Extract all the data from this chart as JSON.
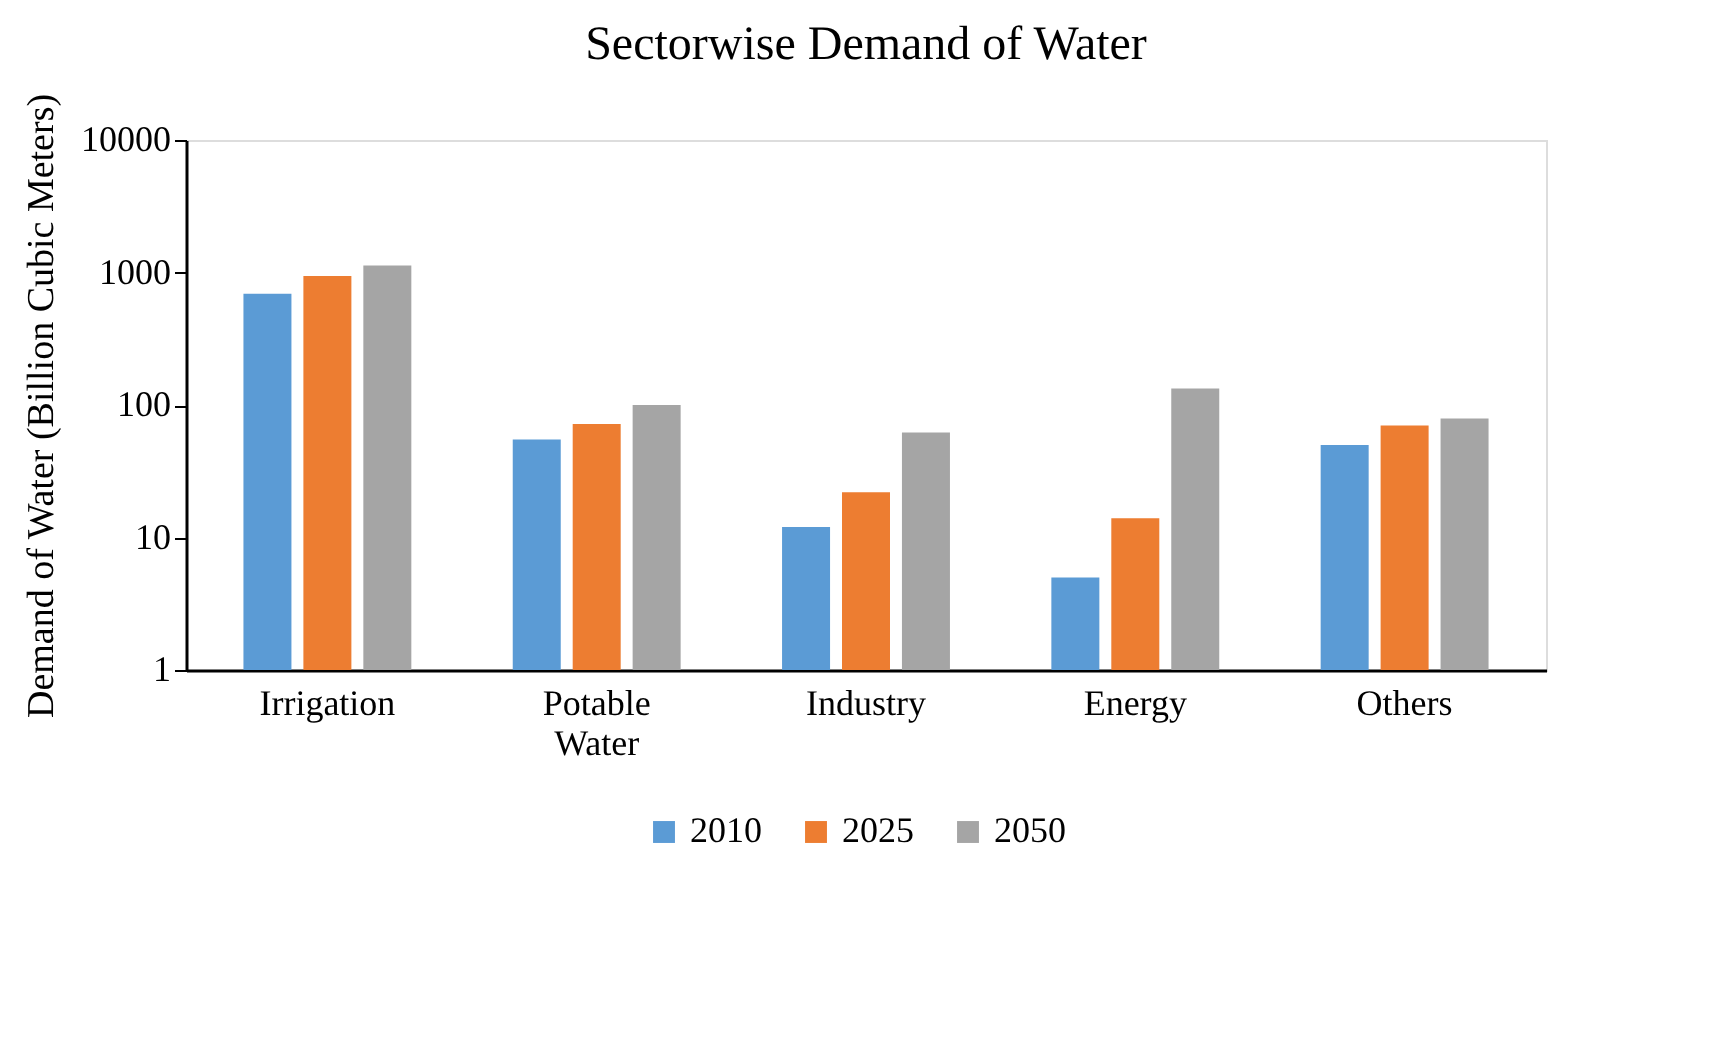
{
  "chart_data": {
    "type": "bar",
    "title": "Sectorwise Demand of Water",
    "ylabel": "Demand of Water (Billion Cubic Meters)",
    "categories": [
      "Irrigation",
      "Potable Water",
      "Industry",
      "Energy",
      "Others"
    ],
    "series": [
      {
        "name": "2010",
        "color": "#5b9bd5",
        "values": [
          690,
          55,
          12,
          5,
          50
        ]
      },
      {
        "name": "2025",
        "color": "#ed7d31",
        "values": [
          940,
          72,
          22,
          14,
          70
        ]
      },
      {
        "name": "2050",
        "color": "#a5a5a5",
        "values": [
          1130,
          100,
          62,
          133,
          79
        ]
      }
    ],
    "log": "y",
    "ylim": [
      1,
      10000
    ],
    "yticks": [
      1,
      10,
      100,
      1000,
      10000
    ],
    "grid": false,
    "legend": "bottom"
  }
}
